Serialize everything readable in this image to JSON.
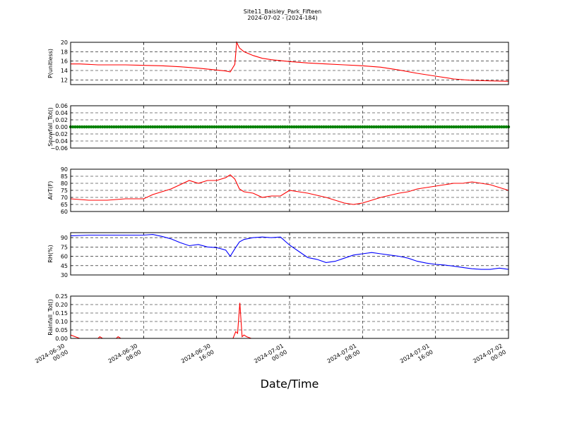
{
  "title": "Site11_Baisley_Park_Fifteen",
  "subtitle": "2024-07-02 - (2024-184)",
  "xlabel": "Date/Time",
  "chart_data": [
    {
      "type": "line",
      "ylabel": "P(unitless)",
      "ylim": [
        11,
        20
      ],
      "yticks": [
        "12",
        "14",
        "16",
        "18",
        "20"
      ],
      "color": "#ff0000",
      "grid": true,
      "x_range": [
        "2024-06-30 00:00",
        "2024-07-02 00:00"
      ],
      "x_hours": [
        0,
        1,
        2,
        3,
        4,
        6,
        8,
        10,
        12,
        14,
        16,
        17,
        17.5,
        18,
        18.2,
        18.5,
        19,
        20,
        21,
        22,
        24,
        26,
        28,
        30,
        32,
        34,
        36,
        38,
        40,
        42,
        44,
        46,
        48
      ],
      "values": [
        15.4,
        15.4,
        15.3,
        15.2,
        15.2,
        15.2,
        15.1,
        15.0,
        14.8,
        14.5,
        14.1,
        13.9,
        13.7,
        15.3,
        20.0,
        18.8,
        18.0,
        17.2,
        16.6,
        16.3,
        15.9,
        15.6,
        15.4,
        15.2,
        15.0,
        14.7,
        14.1,
        13.4,
        12.8,
        12.2,
        11.9,
        11.8,
        11.7
      ]
    },
    {
      "type": "scatter",
      "ylabel": "Snowfall_Tot()",
      "ylim": [
        -0.06,
        0.06
      ],
      "yticks": [
        "0.06",
        "0.04",
        "0.02",
        "0.00",
        "−0.02",
        "−0.04",
        "−0.06"
      ],
      "color": "#008000",
      "grid": true,
      "x_range": [
        "2024-06-30 00:00",
        "2024-07-02 00:00"
      ],
      "constant_value": 0.0
    },
    {
      "type": "line",
      "ylabel": "AirT(F)",
      "ylim": [
        60,
        90
      ],
      "yticks": [
        "60",
        "65",
        "70",
        "75",
        "80",
        "85",
        "90"
      ],
      "color": "#ff0000",
      "grid": true,
      "x_range": [
        "2024-06-30 00:00",
        "2024-07-02 00:00"
      ],
      "x_hours": [
        0,
        2,
        4,
        6,
        8,
        9,
        10,
        11,
        12,
        13,
        14,
        15,
        16,
        17,
        17.5,
        18,
        18.5,
        19,
        20,
        21,
        22,
        23,
        24,
        25,
        26,
        28,
        30,
        31,
        32,
        33,
        34,
        36,
        37,
        38,
        40,
        41,
        42,
        43,
        44,
        46,
        48
      ],
      "values": [
        69,
        68,
        68,
        69,
        69,
        72,
        74,
        76,
        79,
        82,
        80,
        82,
        82,
        84,
        86,
        83,
        76,
        74,
        73,
        70,
        71,
        71,
        75,
        74,
        73,
        70,
        66,
        65,
        66,
        68,
        70,
        73,
        74,
        76,
        78,
        79,
        80,
        80,
        81,
        79,
        75
      ]
    },
    {
      "type": "line",
      "ylabel": "RH(%)",
      "ylim": [
        30,
        98
      ],
      "yticks": [
        "30",
        "45",
        "60",
        "75",
        "90"
      ],
      "color": "#0000ff",
      "grid": true,
      "x_range": [
        "2024-06-30 00:00",
        "2024-07-02 00:00"
      ],
      "x_hours": [
        0,
        2,
        4,
        6,
        8,
        9,
        10,
        11,
        12,
        13,
        14,
        15,
        16,
        17,
        17.5,
        18,
        18.5,
        19,
        20,
        21,
        22,
        23,
        24,
        25,
        26,
        27,
        28,
        29,
        30,
        31,
        32,
        33,
        34,
        35,
        36,
        37,
        38,
        39,
        40,
        41,
        42,
        43,
        44,
        45,
        46,
        47,
        48
      ],
      "values": [
        93,
        94,
        94,
        94,
        94,
        95,
        92,
        88,
        82,
        77,
        79,
        75,
        74,
        70,
        60,
        72,
        83,
        87,
        90,
        91,
        90,
        91,
        78,
        68,
        58,
        55,
        50,
        52,
        57,
        62,
        64,
        66,
        64,
        62,
        60,
        57,
        52,
        49,
        47,
        46,
        44,
        42,
        40,
        39,
        39,
        41,
        39
      ]
    },
    {
      "type": "line",
      "ylabel": "Rainfall_Tot()",
      "ylim": [
        0,
        0.25
      ],
      "yticks": [
        "0.00",
        "0.05",
        "0.10",
        "0.15",
        "0.20",
        "0.25"
      ],
      "color": "#ff0000",
      "grid": true,
      "x_range": [
        "2024-06-30 00:00",
        "2024-07-02 00:00"
      ],
      "x_hours": [
        0,
        0.5,
        1,
        3,
        3.2,
        3.5,
        5,
        5.2,
        5.5,
        17.8,
        18.1,
        18.3,
        18.55,
        18.8,
        19.0,
        19.3,
        19.8,
        48
      ],
      "values": [
        0.02,
        0.01,
        0.0,
        0.0,
        0.01,
        0.0,
        0.0,
        0.01,
        0.0,
        0.0,
        0.04,
        0.03,
        0.21,
        0.01,
        0.02,
        0.01,
        0.0,
        0.0
      ]
    }
  ],
  "xticks": [
    {
      "line1": "2024-06-30",
      "line2": "00:00"
    },
    {
      "line1": "2024-06-30",
      "line2": "08:00"
    },
    {
      "line1": "2024-06-30",
      "line2": "16:00"
    },
    {
      "line1": "2024-07-01",
      "line2": "00:00"
    },
    {
      "line1": "2024-07-01",
      "line2": "08:00"
    },
    {
      "line1": "2024-07-01",
      "line2": "16:00"
    },
    {
      "line1": "2024-07-02",
      "line2": "00:00"
    }
  ]
}
